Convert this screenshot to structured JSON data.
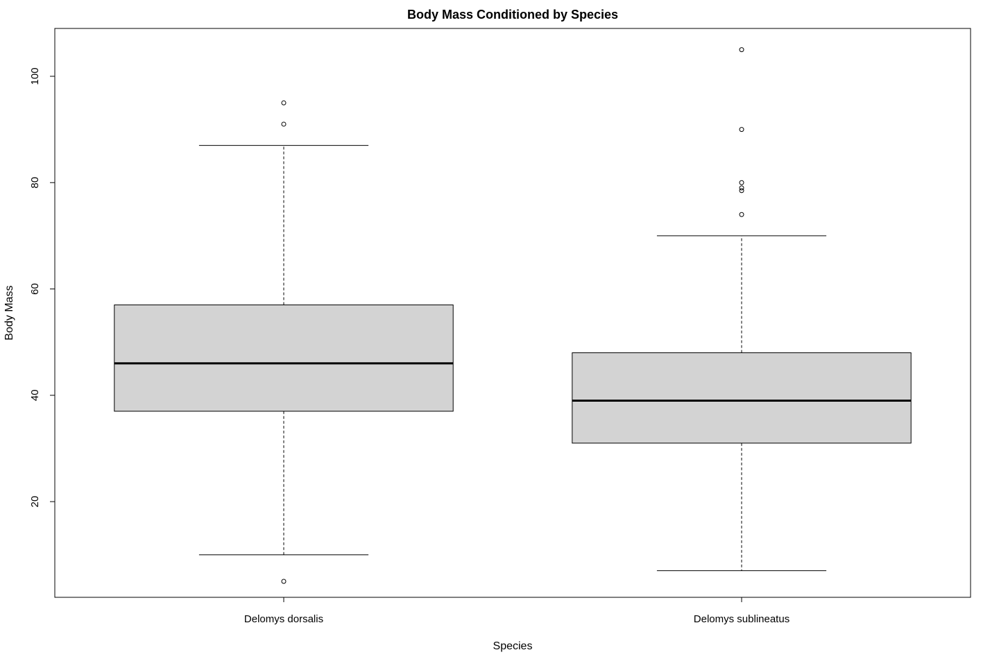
{
  "chart_data": {
    "type": "boxplot",
    "title": "Body Mass Conditioned by Species",
    "xlabel": "Species",
    "ylabel": "Body Mass",
    "ylim": [
      2,
      109
    ],
    "yticks": [
      20,
      40,
      60,
      80,
      100
    ],
    "grid": false,
    "legend": "none",
    "box_fill": "#d3d3d3",
    "line_color": "#000000",
    "categories": [
      "Delomys dorsalis",
      "Delomys sublineatus"
    ],
    "boxes": [
      {
        "category": "Delomys dorsalis",
        "whisker_low": 10,
        "q1": 37,
        "median": 46,
        "q3": 57,
        "whisker_high": 87,
        "outliers": [
          5,
          91,
          95
        ]
      },
      {
        "category": "Delomys sublineatus",
        "whisker_low": 7,
        "q1": 31,
        "median": 39,
        "q3": 48,
        "whisker_high": 70,
        "outliers": [
          74,
          78.5,
          79,
          80,
          90,
          105
        ]
      }
    ]
  }
}
